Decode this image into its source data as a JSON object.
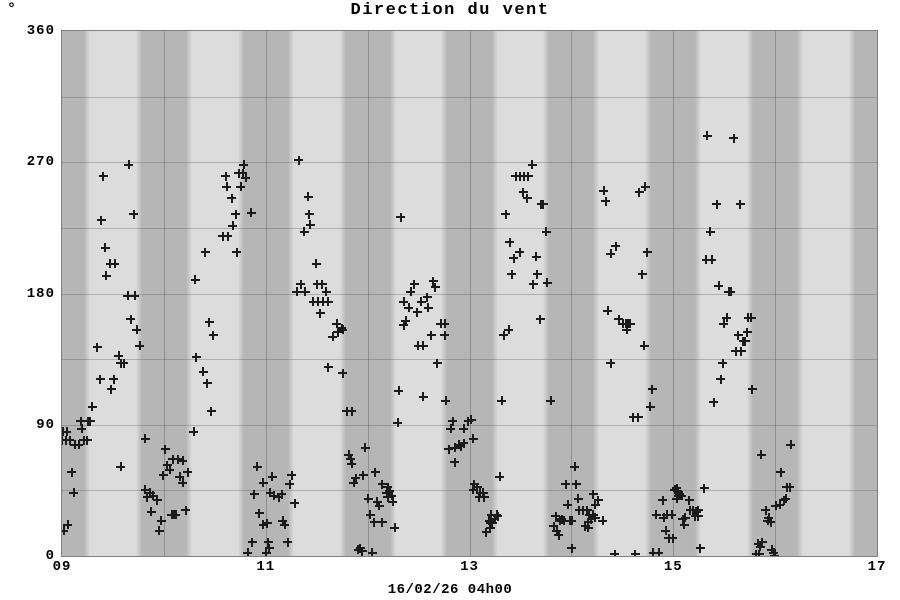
{
  "chart_data": {
    "type": "scatter",
    "marker": "plus",
    "title": "Direction du vent",
    "xlabel": "16/02/26 04h00",
    "ylabel": "°",
    "xlim": [
      9,
      17
    ],
    "ylim": [
      0,
      360
    ],
    "grid": true,
    "x_ticks": [
      {
        "value": 9,
        "label": "09"
      },
      {
        "value": 11,
        "label": "11"
      },
      {
        "value": 13,
        "label": "13"
      },
      {
        "value": 15,
        "label": "15"
      },
      {
        "value": 17,
        "label": "17"
      }
    ],
    "y_ticks": [
      {
        "value": 0,
        "label": "0"
      },
      {
        "value": 90,
        "label": "90"
      },
      {
        "value": 180,
        "label": "180"
      },
      {
        "value": 270,
        "label": "270"
      },
      {
        "value": 360,
        "label": "360"
      }
    ],
    "y_gridline_step_deg": 45,
    "x_gridline_step_hours": 1,
    "bands": {
      "dark_band_centers_hours": [
        9,
        10,
        11,
        12,
        13,
        14,
        15,
        16,
        17
      ],
      "dark_band_half_width_minutes": 13
    },
    "colors": {
      "background": "#ffffff",
      "band_dark": "#b6b6b6",
      "band_light": "#dcdcdc",
      "frame": "#7f7f7f",
      "marker": "#1b1b1b",
      "text": "#000000"
    },
    "points": [
      [
        9.0,
        79
      ],
      [
        9.01,
        85
      ],
      [
        9.02,
        17
      ],
      [
        9.04,
        79
      ],
      [
        9.05,
        85
      ],
      [
        9.06,
        21
      ],
      [
        9.08,
        79
      ],
      [
        9.1,
        57
      ],
      [
        9.12,
        43
      ],
      [
        9.13,
        76
      ],
      [
        9.17,
        76
      ],
      [
        9.19,
        92
      ],
      [
        9.2,
        87
      ],
      [
        9.22,
        79
      ],
      [
        9.25,
        79
      ],
      [
        9.26,
        92
      ],
      [
        9.28,
        92
      ],
      [
        9.3,
        102
      ],
      [
        9.35,
        143
      ],
      [
        9.38,
        121
      ],
      [
        9.39,
        230
      ],
      [
        9.41,
        260
      ],
      [
        9.43,
        211
      ],
      [
        9.44,
        192
      ],
      [
        9.48,
        200
      ],
      [
        9.49,
        114
      ],
      [
        9.51,
        121
      ],
      [
        9.52,
        200
      ],
      [
        9.56,
        137
      ],
      [
        9.58,
        132
      ],
      [
        9.58,
        61
      ],
      [
        9.61,
        132
      ],
      [
        9.65,
        178
      ],
      [
        9.66,
        268
      ],
      [
        9.68,
        162
      ],
      [
        9.71,
        234
      ],
      [
        9.72,
        178
      ],
      [
        9.74,
        155
      ],
      [
        9.77,
        144
      ],
      [
        9.82,
        80
      ],
      [
        9.82,
        45
      ],
      [
        9.84,
        40
      ],
      [
        9.87,
        43
      ],
      [
        9.88,
        30
      ],
      [
        9.9,
        41
      ],
      [
        9.94,
        38
      ],
      [
        9.96,
        17
      ],
      [
        9.98,
        24
      ],
      [
        10.0,
        55
      ],
      [
        10.02,
        73
      ],
      [
        10.04,
        62
      ],
      [
        10.06,
        59
      ],
      [
        10.08,
        28
      ],
      [
        10.09,
        66
      ],
      [
        10.1,
        28
      ],
      [
        10.12,
        28
      ],
      [
        10.14,
        66
      ],
      [
        10.16,
        54
      ],
      [
        10.19,
        65
      ],
      [
        10.19,
        50
      ],
      [
        10.22,
        31
      ],
      [
        10.24,
        57
      ],
      [
        10.3,
        85
      ],
      [
        10.31,
        189
      ],
      [
        10.32,
        136
      ],
      [
        10.39,
        126
      ],
      [
        10.41,
        208
      ],
      [
        10.43,
        118
      ],
      [
        10.45,
        160
      ],
      [
        10.47,
        99
      ],
      [
        10.49,
        151
      ],
      [
        10.58,
        219
      ],
      [
        10.61,
        260
      ],
      [
        10.62,
        253
      ],
      [
        10.63,
        219
      ],
      [
        10.67,
        245
      ],
      [
        10.68,
        226
      ],
      [
        10.71,
        234
      ],
      [
        10.72,
        208
      ],
      [
        10.74,
        262
      ],
      [
        10.76,
        253
      ],
      [
        10.78,
        262
      ],
      [
        10.79,
        268
      ],
      [
        10.81,
        259
      ],
      [
        10.86,
        235
      ],
      [
        10.83,
        2
      ],
      [
        10.87,
        9
      ],
      [
        10.89,
        42
      ],
      [
        10.92,
        61
      ],
      [
        10.94,
        29
      ],
      [
        10.98,
        50
      ],
      [
        10.98,
        21
      ],
      [
        11.01,
        2
      ],
      [
        11.02,
        22
      ],
      [
        11.03,
        9
      ],
      [
        11.04,
        5
      ],
      [
        11.05,
        43
      ],
      [
        11.07,
        54
      ],
      [
        11.09,
        41
      ],
      [
        11.13,
        40
      ],
      [
        11.16,
        42
      ],
      [
        11.17,
        24
      ],
      [
        11.19,
        21
      ],
      [
        11.22,
        9
      ],
      [
        11.24,
        49
      ],
      [
        11.26,
        55
      ],
      [
        11.29,
        36
      ],
      [
        11.31,
        181
      ],
      [
        11.33,
        271
      ],
      [
        11.35,
        186
      ],
      [
        11.38,
        222
      ],
      [
        11.39,
        181
      ],
      [
        11.42,
        246
      ],
      [
        11.43,
        234
      ],
      [
        11.44,
        227
      ],
      [
        11.47,
        174
      ],
      [
        11.5,
        200
      ],
      [
        11.51,
        186
      ],
      [
        11.52,
        174
      ],
      [
        11.54,
        166
      ],
      [
        11.56,
        186
      ],
      [
        11.57,
        174
      ],
      [
        11.6,
        181
      ],
      [
        11.62,
        174
      ],
      [
        11.62,
        129
      ],
      [
        11.66,
        150
      ],
      [
        11.7,
        159
      ],
      [
        11.71,
        153
      ],
      [
        11.75,
        156
      ],
      [
        11.76,
        155
      ],
      [
        11.76,
        125
      ],
      [
        11.8,
        99
      ],
      [
        11.85,
        99
      ],
      [
        11.82,
        69
      ],
      [
        11.84,
        66
      ],
      [
        11.85,
        63
      ],
      [
        11.87,
        50
      ],
      [
        11.89,
        53
      ],
      [
        11.91,
        4
      ],
      [
        11.93,
        5
      ],
      [
        11.95,
        3
      ],
      [
        11.96,
        55
      ],
      [
        11.98,
        74
      ],
      [
        12.01,
        39
      ],
      [
        12.03,
        28
      ],
      [
        12.05,
        2
      ],
      [
        12.07,
        23
      ],
      [
        12.08,
        57
      ],
      [
        12.1,
        37
      ],
      [
        12.12,
        34
      ],
      [
        12.15,
        49
      ],
      [
        12.15,
        23
      ],
      [
        12.19,
        43
      ],
      [
        12.2,
        47
      ],
      [
        12.2,
        40
      ],
      [
        12.22,
        44
      ],
      [
        12.24,
        41
      ],
      [
        12.25,
        37
      ],
      [
        12.27,
        19
      ],
      [
        12.3,
        91
      ],
      [
        12.31,
        113
      ],
      [
        12.33,
        232
      ],
      [
        12.36,
        174
      ],
      [
        12.36,
        158
      ],
      [
        12.38,
        161
      ],
      [
        12.41,
        170
      ],
      [
        12.43,
        181
      ],
      [
        12.46,
        186
      ],
      [
        12.49,
        167
      ],
      [
        12.5,
        144
      ],
      [
        12.53,
        174
      ],
      [
        12.55,
        144
      ],
      [
        12.55,
        109
      ],
      [
        12.59,
        177
      ],
      [
        12.6,
        170
      ],
      [
        12.63,
        151
      ],
      [
        12.65,
        188
      ],
      [
        12.67,
        184
      ],
      [
        12.69,
        132
      ],
      [
        12.72,
        159
      ],
      [
        12.76,
        159
      ],
      [
        12.76,
        151
      ],
      [
        12.77,
        106
      ],
      [
        12.8,
        73
      ],
      [
        12.82,
        87
      ],
      [
        12.84,
        92
      ],
      [
        12.86,
        74
      ],
      [
        12.86,
        64
      ],
      [
        12.9,
        76
      ],
      [
        12.92,
        75
      ],
      [
        12.95,
        87
      ],
      [
        12.95,
        77
      ],
      [
        12.99,
        92
      ],
      [
        13.02,
        93
      ],
      [
        13.04,
        80
      ],
      [
        13.04,
        45
      ],
      [
        13.05,
        49
      ],
      [
        13.08,
        47
      ],
      [
        13.1,
        40
      ],
      [
        13.11,
        43
      ],
      [
        13.14,
        43
      ],
      [
        13.15,
        40
      ],
      [
        13.17,
        16
      ],
      [
        13.2,
        24
      ],
      [
        13.21,
        22
      ],
      [
        13.21,
        19
      ],
      [
        13.22,
        28
      ],
      [
        13.23,
        22
      ],
      [
        13.25,
        25
      ],
      [
        13.27,
        28
      ],
      [
        13.28,
        27
      ],
      [
        13.3,
        54
      ],
      [
        13.32,
        106
      ],
      [
        13.34,
        151
      ],
      [
        13.36,
        234
      ],
      [
        13.39,
        155
      ],
      [
        13.4,
        215
      ],
      [
        13.42,
        193
      ],
      [
        13.44,
        204
      ],
      [
        13.46,
        260
      ],
      [
        13.5,
        260
      ],
      [
        13.5,
        208
      ],
      [
        13.53,
        249
      ],
      [
        13.54,
        260
      ],
      [
        13.57,
        245
      ],
      [
        13.58,
        260
      ],
      [
        13.62,
        268
      ],
      [
        13.63,
        186
      ],
      [
        13.66,
        205
      ],
      [
        13.67,
        193
      ],
      [
        13.7,
        162
      ],
      [
        13.71,
        241
      ],
      [
        13.73,
        241
      ],
      [
        13.76,
        222
      ],
      [
        13.77,
        187
      ],
      [
        13.8,
        106
      ],
      [
        13.83,
        20
      ],
      [
        13.85,
        27
      ],
      [
        13.86,
        17
      ],
      [
        13.88,
        14
      ],
      [
        13.89,
        24
      ],
      [
        13.91,
        25
      ],
      [
        13.93,
        24
      ],
      [
        13.95,
        49
      ],
      [
        13.97,
        35
      ],
      [
        13.99,
        24
      ],
      [
        14.01,
        24
      ],
      [
        14.01,
        5
      ],
      [
        14.04,
        61
      ],
      [
        14.05,
        49
      ],
      [
        14.07,
        39
      ],
      [
        14.08,
        31
      ],
      [
        14.12,
        31
      ],
      [
        14.14,
        20
      ],
      [
        14.16,
        31
      ],
      [
        14.17,
        23
      ],
      [
        14.17,
        19
      ],
      [
        14.18,
        28
      ],
      [
        14.2,
        25
      ],
      [
        14.22,
        28
      ],
      [
        14.22,
        42
      ],
      [
        14.24,
        26
      ],
      [
        14.24,
        35
      ],
      [
        14.27,
        38
      ],
      [
        14.31,
        24
      ],
      [
        14.43,
        1
      ],
      [
        14.32,
        250
      ],
      [
        14.34,
        243
      ],
      [
        14.36,
        168
      ],
      [
        14.39,
        207
      ],
      [
        14.39,
        132
      ],
      [
        14.44,
        212
      ],
      [
        14.47,
        162
      ],
      [
        14.51,
        159
      ],
      [
        14.54,
        159
      ],
      [
        14.56,
        159
      ],
      [
        14.58,
        159
      ],
      [
        14.55,
        155
      ],
      [
        14.61,
        95
      ],
      [
        14.63,
        1
      ],
      [
        14.66,
        95
      ],
      [
        14.67,
        249
      ],
      [
        14.7,
        193
      ],
      [
        14.72,
        144
      ],
      [
        14.73,
        253
      ],
      [
        14.75,
        208
      ],
      [
        14.78,
        102
      ],
      [
        14.8,
        114
      ],
      [
        14.81,
        2
      ],
      [
        14.84,
        28
      ],
      [
        14.86,
        2
      ],
      [
        14.9,
        38
      ],
      [
        14.91,
        26
      ],
      [
        14.93,
        17
      ],
      [
        14.94,
        28
      ],
      [
        14.96,
        12
      ],
      [
        14.99,
        28
      ],
      [
        15.0,
        12
      ],
      [
        15.02,
        45
      ],
      [
        15.04,
        46
      ],
      [
        15.04,
        39
      ],
      [
        15.05,
        44
      ],
      [
        15.06,
        41
      ],
      [
        15.07,
        42
      ],
      [
        15.09,
        41
      ],
      [
        15.1,
        25
      ],
      [
        15.11,
        21
      ],
      [
        15.12,
        26
      ],
      [
        15.16,
        38
      ],
      [
        15.17,
        31
      ],
      [
        15.2,
        31
      ],
      [
        15.22,
        27
      ],
      [
        15.23,
        30
      ],
      [
        15.25,
        31
      ],
      [
        15.25,
        27
      ],
      [
        15.27,
        5
      ],
      [
        15.31,
        46
      ],
      [
        15.33,
        203
      ],
      [
        15.34,
        288
      ],
      [
        15.37,
        222
      ],
      [
        15.38,
        203
      ],
      [
        15.4,
        105
      ],
      [
        15.43,
        241
      ],
      [
        15.45,
        185
      ],
      [
        15.47,
        121
      ],
      [
        15.49,
        132
      ],
      [
        15.5,
        159
      ],
      [
        15.53,
        163
      ],
      [
        15.55,
        181
      ],
      [
        15.57,
        181
      ],
      [
        15.6,
        286
      ],
      [
        15.62,
        140
      ],
      [
        15.64,
        151
      ],
      [
        15.66,
        241
      ],
      [
        15.67,
        140
      ],
      [
        15.69,
        147
      ],
      [
        15.71,
        147
      ],
      [
        15.73,
        153
      ],
      [
        15.74,
        163
      ],
      [
        15.77,
        163
      ],
      [
        15.78,
        114
      ],
      [
        15.82,
        1
      ],
      [
        15.84,
        8
      ],
      [
        15.85,
        1
      ],
      [
        15.86,
        6
      ],
      [
        15.87,
        69
      ],
      [
        15.88,
        9
      ],
      [
        15.91,
        31
      ],
      [
        15.93,
        24
      ],
      [
        15.94,
        26
      ],
      [
        15.96,
        23
      ],
      [
        15.97,
        4
      ],
      [
        15.99,
        2
      ],
      [
        16.0,
        0
      ],
      [
        16.01,
        34
      ],
      [
        16.05,
        35
      ],
      [
        16.06,
        57
      ],
      [
        16.09,
        38
      ],
      [
        16.11,
        39
      ],
      [
        16.12,
        47
      ],
      [
        16.15,
        47
      ],
      [
        16.16,
        76
      ]
    ]
  }
}
